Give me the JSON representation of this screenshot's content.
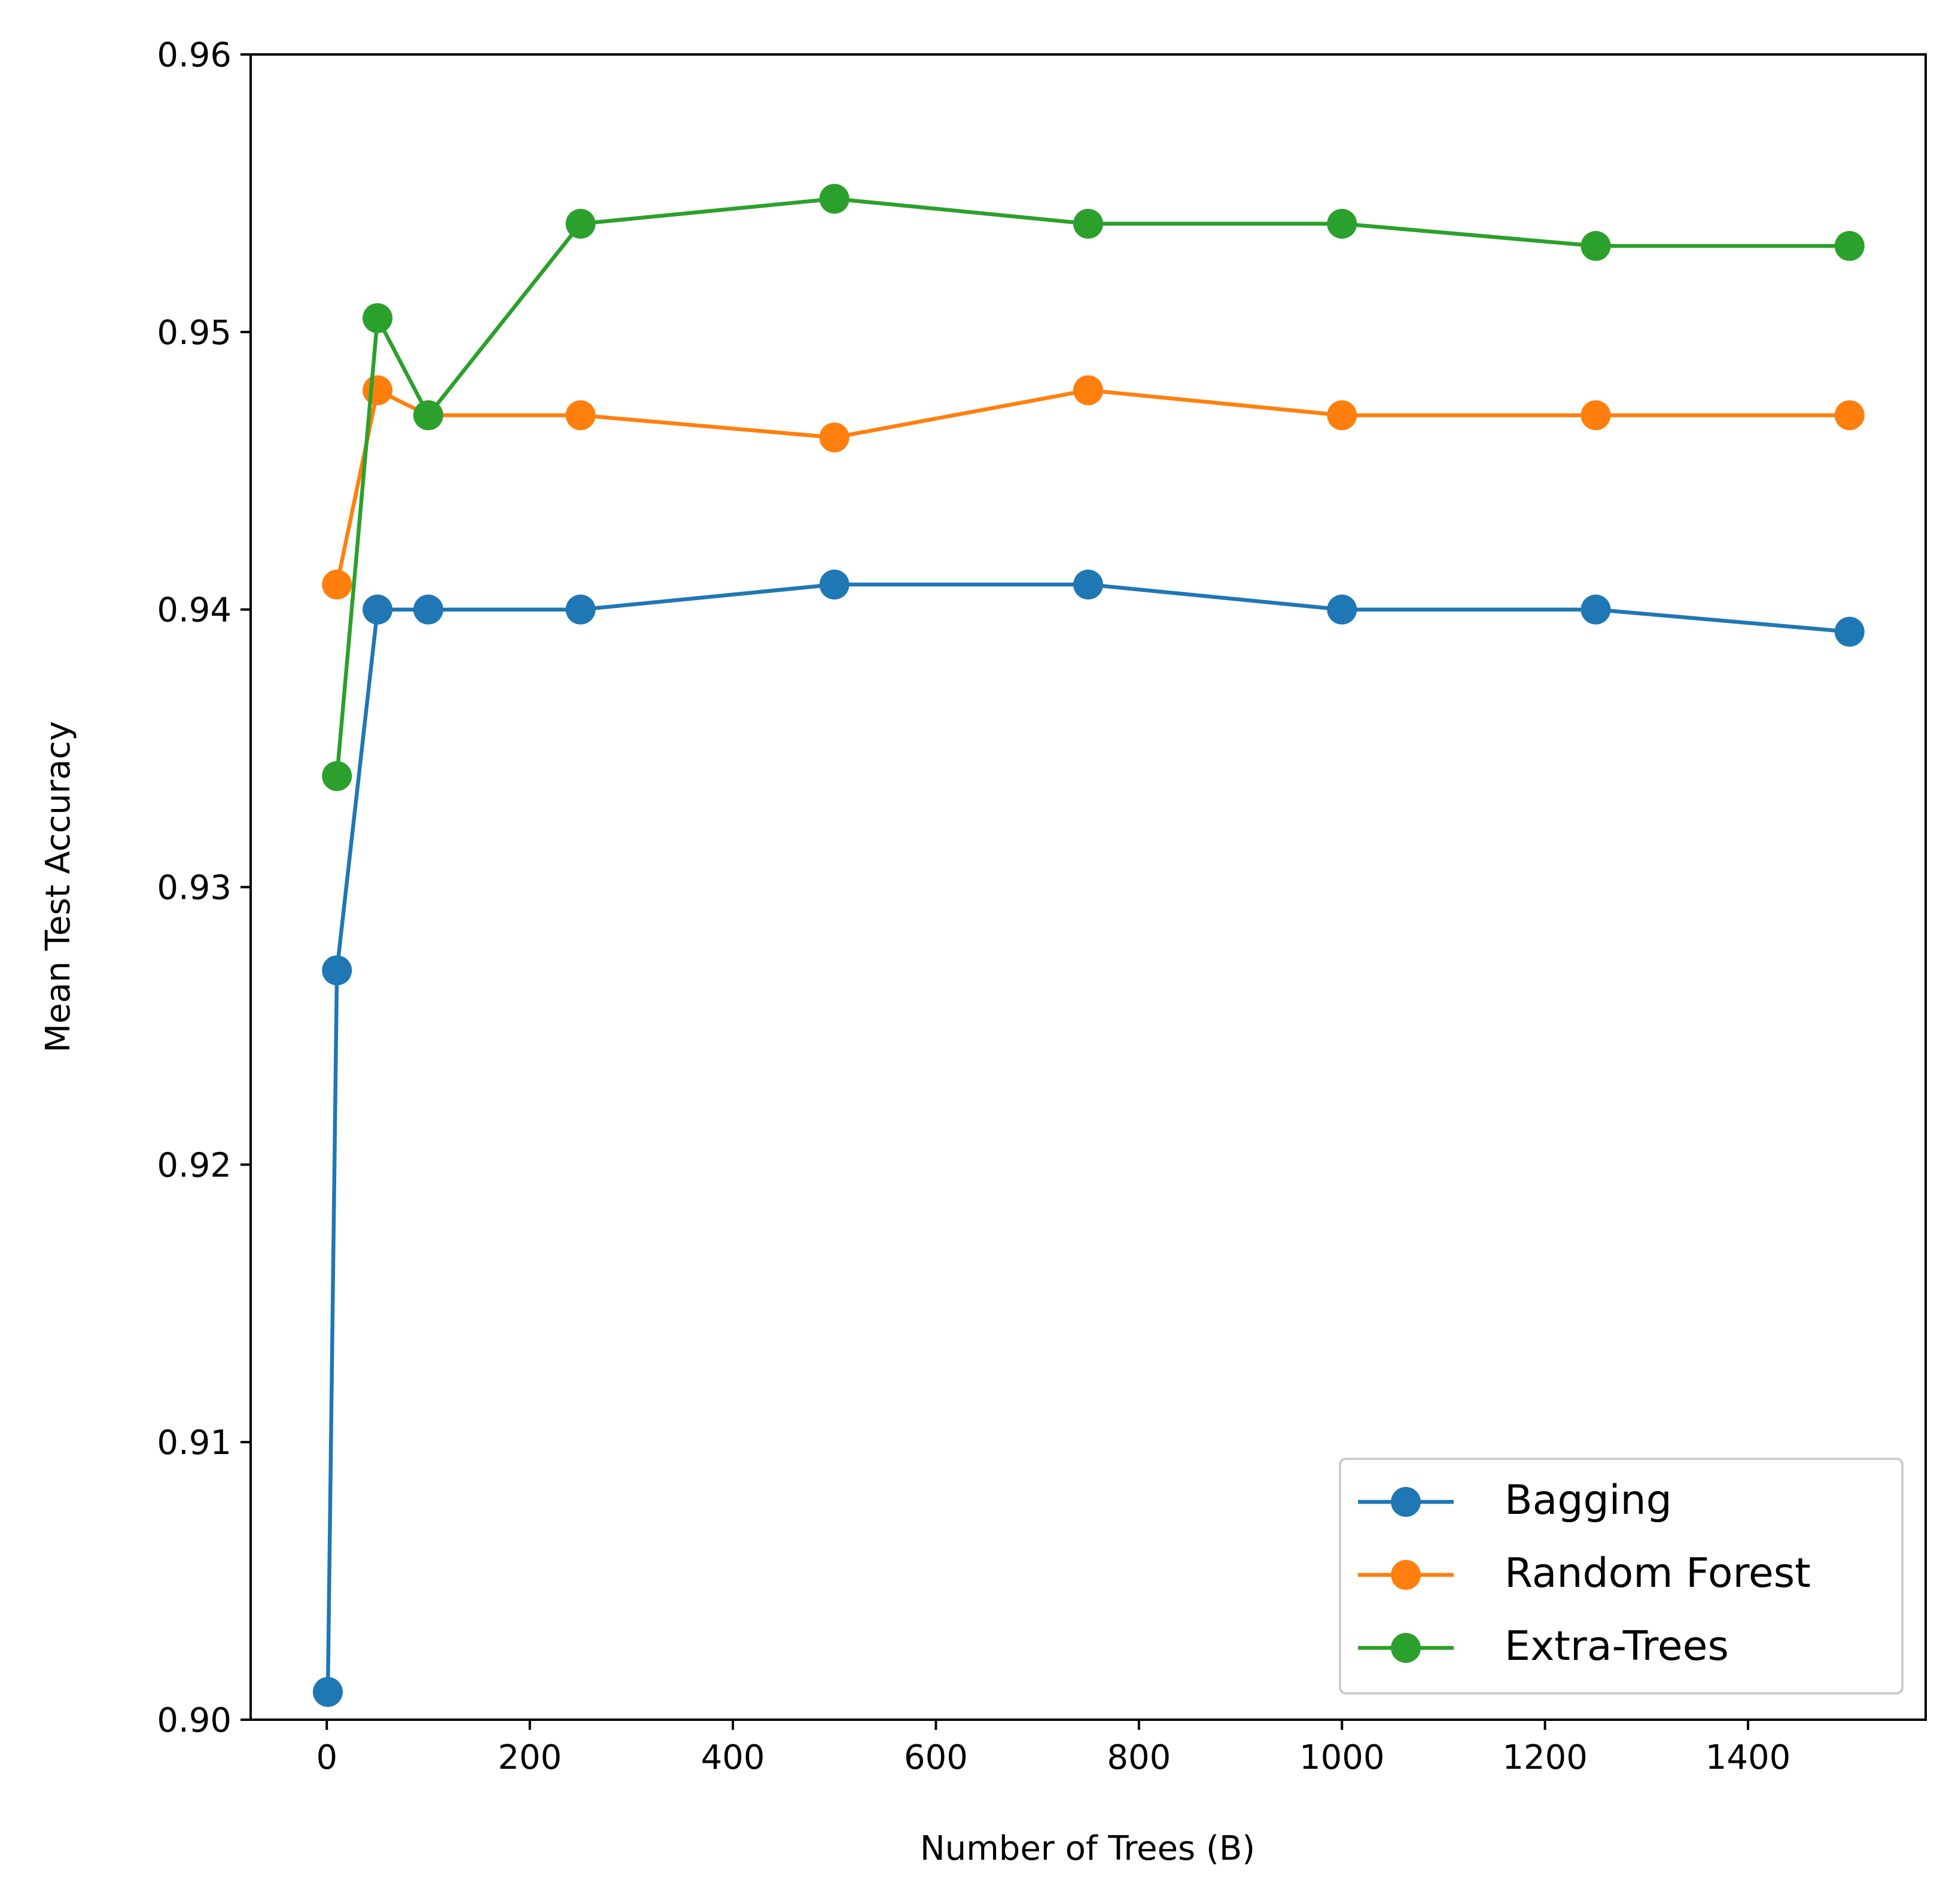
{
  "chart_data": {
    "type": "line",
    "title": "",
    "xlabel": "Number of Trees (B)",
    "ylabel": "Mean Test Accuracy",
    "xlim": [
      -75,
      1575
    ],
    "ylim": [
      0.9,
      0.96
    ],
    "xticks": [
      0,
      200,
      400,
      600,
      800,
      1000,
      1200,
      1400
    ],
    "xtick_labels": [
      "0",
      "200",
      "400",
      "600",
      "800",
      "1000",
      "1200",
      "1400"
    ],
    "yticks": [
      0.9,
      0.91,
      0.92,
      0.93,
      0.94,
      0.95,
      0.96
    ],
    "ytick_labels": [
      "0.90",
      "0.91",
      "0.92",
      "0.93",
      "0.94",
      "0.95",
      "0.96"
    ],
    "grid": false,
    "legend": "lower-right",
    "series": [
      {
        "name": "Bagging",
        "color": "#1f77b4",
        "x": [
          1,
          10,
          50,
          100,
          250,
          500,
          750,
          1000,
          1250,
          1500
        ],
        "y": [
          0.901,
          0.927,
          0.94,
          0.94,
          0.94,
          0.9409,
          0.9409,
          0.94,
          0.94,
          0.9392
        ]
      },
      {
        "name": "Random Forest",
        "color": "#ff7f0e",
        "x": [
          10,
          50,
          100,
          250,
          500,
          750,
          1000,
          1250,
          1500
        ],
        "y": [
          0.9409,
          0.9479,
          0.947,
          0.947,
          0.9462,
          0.9479,
          0.947,
          0.947,
          0.947
        ]
      },
      {
        "name": "Extra-Trees",
        "color": "#2ca02c",
        "x": [
          10,
          50,
          100,
          250,
          500,
          750,
          1000,
          1250,
          1500
        ],
        "y": [
          0.934,
          0.9505,
          0.947,
          0.9539,
          0.9548,
          0.9539,
          0.9539,
          0.9531,
          0.9531
        ]
      }
    ]
  }
}
